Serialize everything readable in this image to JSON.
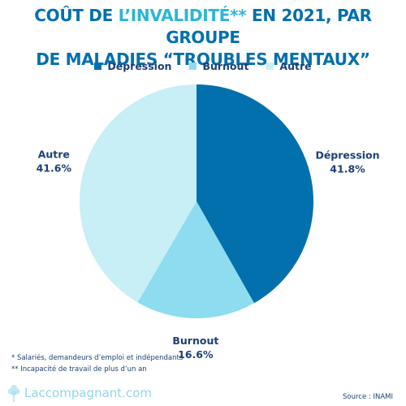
{
  "title": {
    "part1": "COÛT DE ",
    "highlight": "L’INVALIDITÉ**",
    "part2": " EN 2021, PAR GROUPE",
    "line2": "DE MALADIES “TROUBLES MENTAUX”"
  },
  "colors": {
    "title": "#0270ad",
    "highlight": "#29b6d8",
    "label_text": "#1d3f73"
  },
  "chart_data": {
    "type": "pie",
    "legend_position": "top",
    "slices": [
      {
        "label": "Dépression",
        "value": 41.8,
        "value_label": "41.8%",
        "color": "#0270ad"
      },
      {
        "label": "Burnout",
        "value": 16.6,
        "value_label": "16.6%",
        "color": "#8ddcef"
      },
      {
        "label": "Autre",
        "value": 41.6,
        "value_label": "41.6%",
        "color": "#c8eef6"
      }
    ]
  },
  "footnotes": {
    "note1": "* Salariés, demandeurs d’emploi et indépendants",
    "note2": "** Incapacité de travail de plus d’un an"
  },
  "brand": {
    "name": "Laccompagnant.com",
    "logo_icon": "tree-icon",
    "logo_color": "#bfe9f4"
  },
  "source": "Source : INAMI"
}
